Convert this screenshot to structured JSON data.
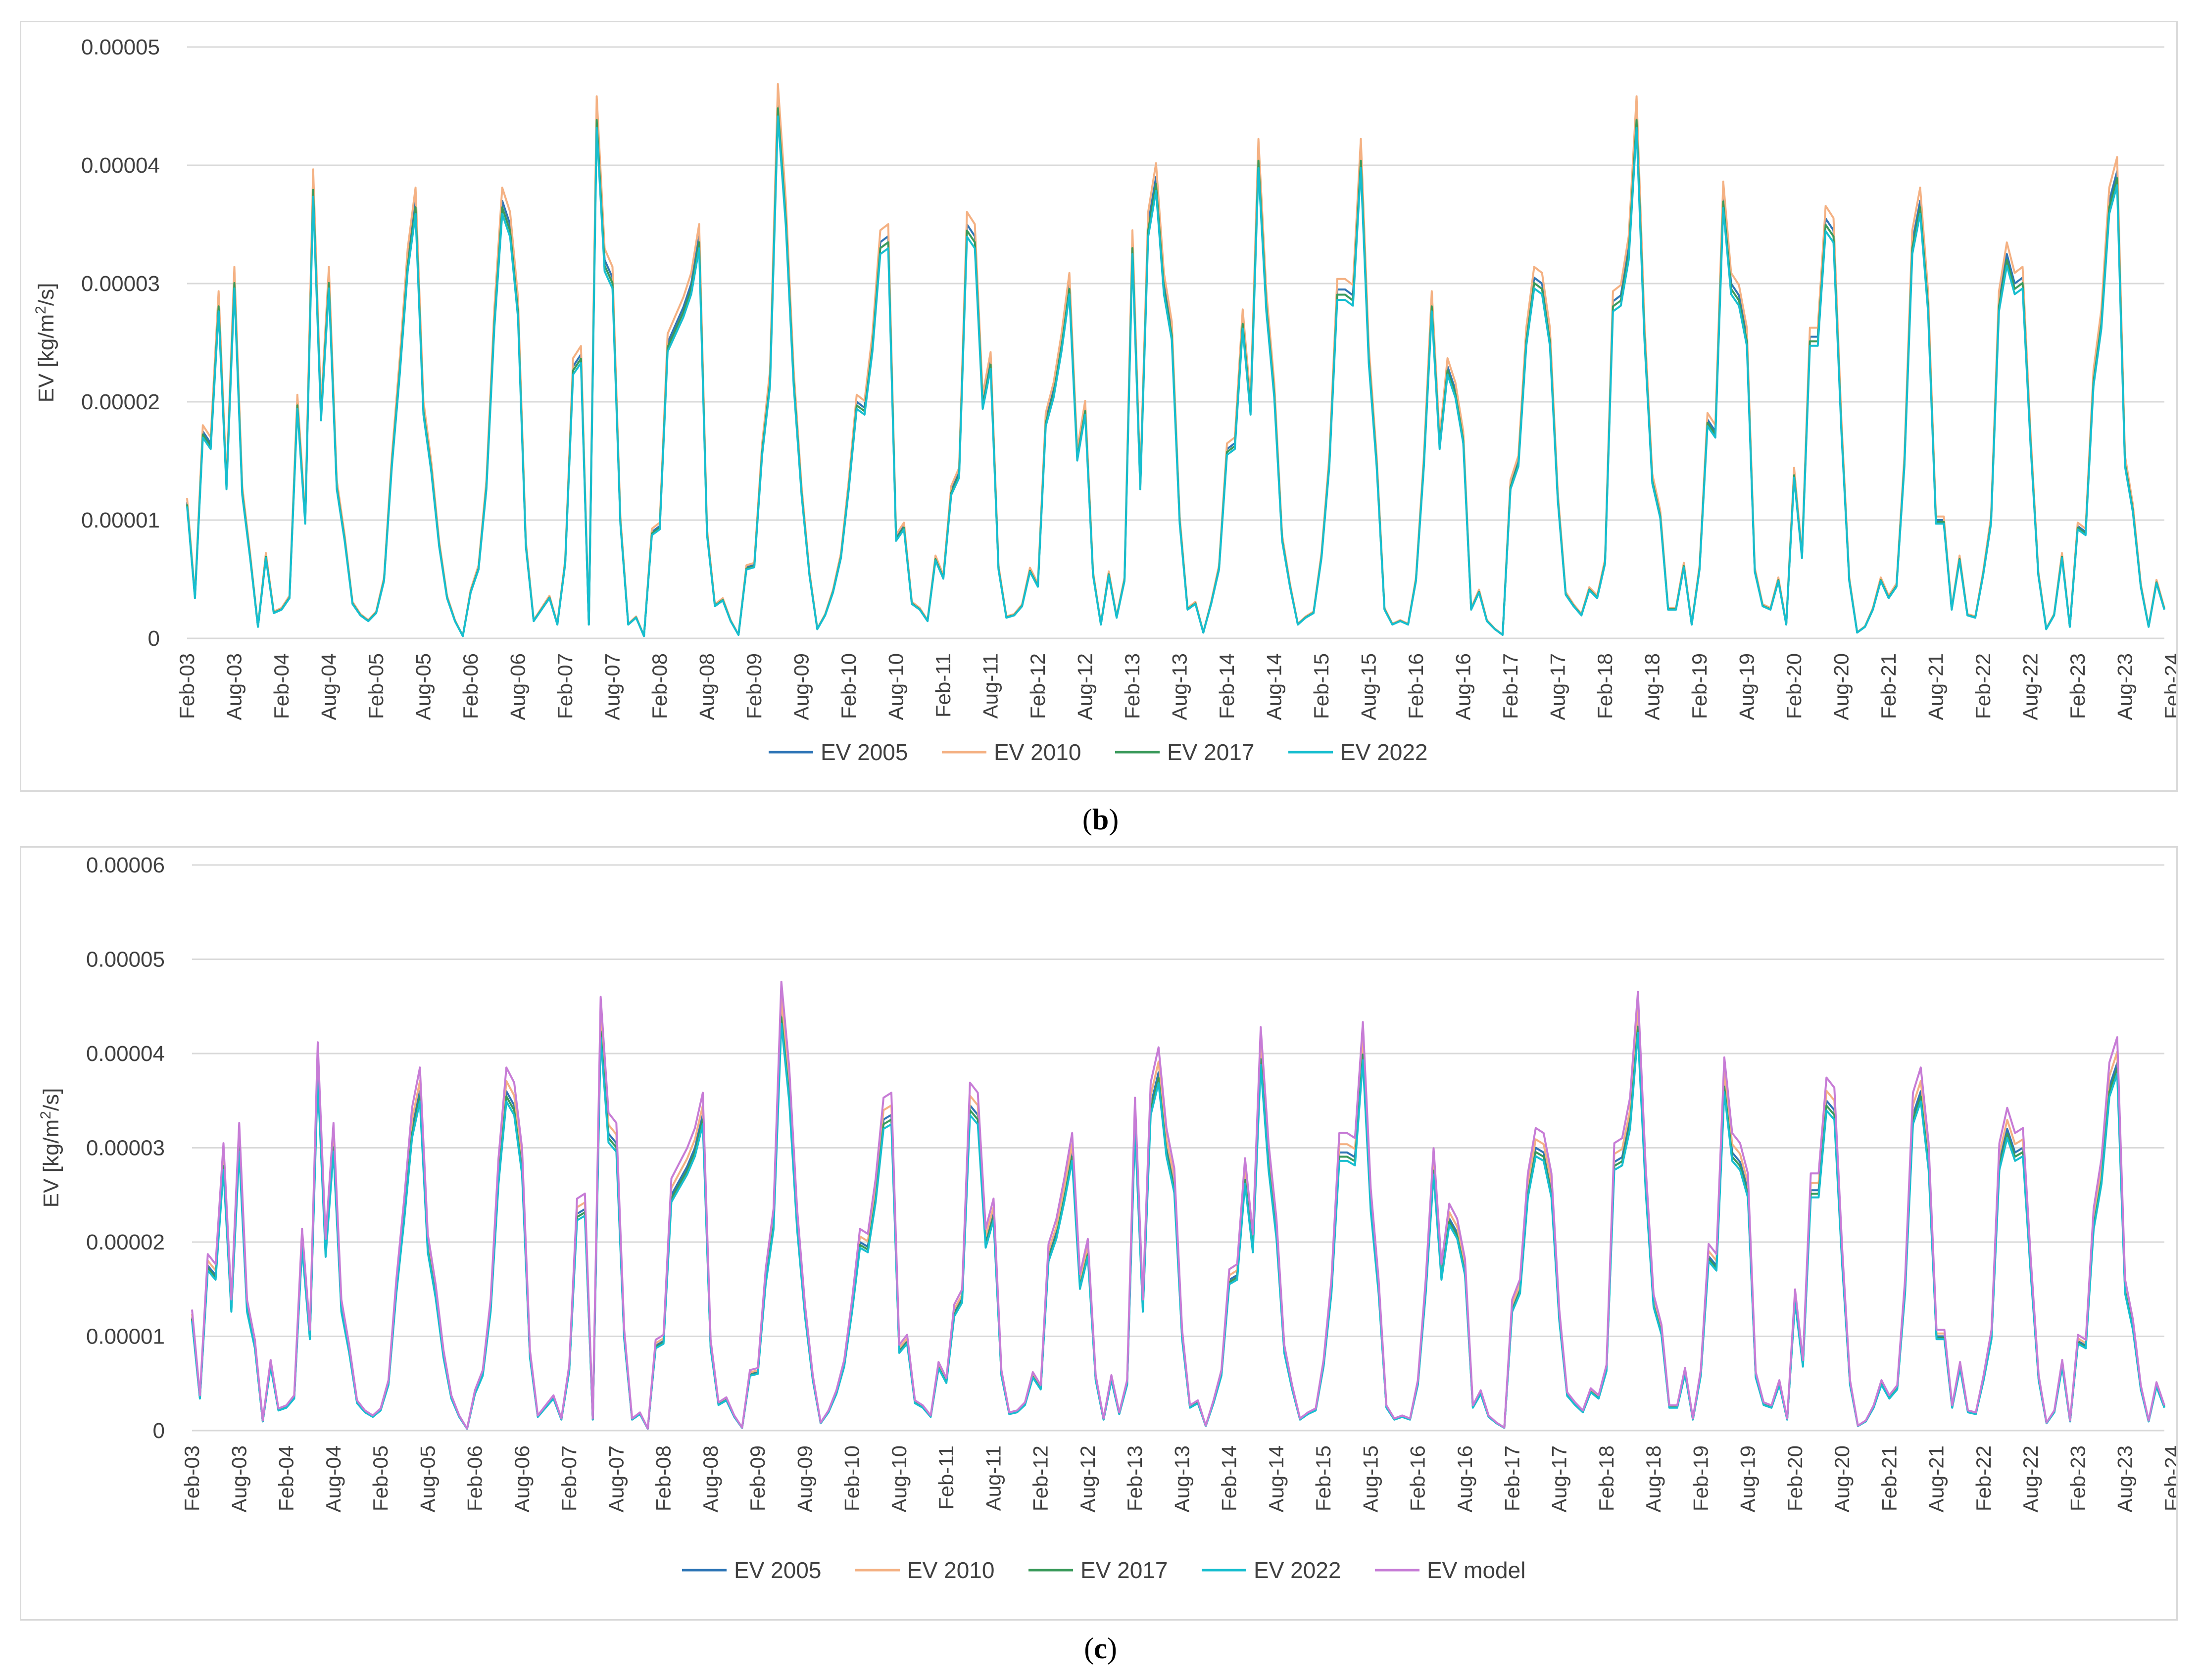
{
  "captions": {
    "b_open": "(",
    "b_letter": "b",
    "b_close": ")",
    "c_open": "(",
    "c_letter": "c",
    "c_close": ")"
  },
  "chart_data": [
    {
      "id": "b",
      "type": "line",
      "title": "",
      "ylabel": "EV [kg/m²/s]",
      "ylabel_parts": {
        "pre": "EV [kg/m",
        "sup": "2",
        "post": "/s]"
      },
      "xlabel": "",
      "ylim": [
        0,
        5e-05
      ],
      "yticks": [
        0,
        1e-05,
        2e-05,
        3e-05,
        4e-05,
        5e-05
      ],
      "ytick_labels": [
        "0",
        "0.00001",
        "0.00002",
        "0.00003",
        "0.00004",
        "0.00005"
      ],
      "x_tick_labels": [
        "Feb-03",
        "Aug-03",
        "Feb-04",
        "Aug-04",
        "Feb-05",
        "Aug-05",
        "Feb-06",
        "Aug-06",
        "Feb-07",
        "Aug-07",
        "Feb-08",
        "Aug-08",
        "Feb-09",
        "Aug-09",
        "Feb-10",
        "Aug-10",
        "Feb-11",
        "Aug-11",
        "Feb-12",
        "Aug-12",
        "Feb-13",
        "Aug-13",
        "Feb-14",
        "Aug-14",
        "Feb-15",
        "Aug-15",
        "Feb-16",
        "Aug-16",
        "Feb-17",
        "Aug-17",
        "Feb-18",
        "Aug-18",
        "Feb-19",
        "Aug-19",
        "Feb-20",
        "Aug-20",
        "Feb-21",
        "Aug-21",
        "Feb-22",
        "Aug-22",
        "Feb-23",
        "Aug-23",
        "Feb-24"
      ],
      "grid": true,
      "legend_position": "bottom",
      "base_key": "base_b",
      "series": [
        {
          "name": "EV 2005",
          "color": "#2e75b6",
          "scale": 1.0
        },
        {
          "name": "EV 2010",
          "color": "#f4b183",
          "scale": 1.03
        },
        {
          "name": "EV 2017",
          "color": "#3a9a5b",
          "scale": 0.985
        },
        {
          "name": "EV 2022",
          "color": "#17becf",
          "scale": 0.97
        }
      ]
    },
    {
      "id": "c",
      "type": "line",
      "title": "",
      "ylabel": "EV [kg/m²/s]",
      "ylabel_parts": {
        "pre": "EV [kg/m",
        "sup": "2",
        "post": "/s]"
      },
      "xlabel": "",
      "ylim": [
        0,
        6e-05
      ],
      "yticks": [
        0,
        1e-05,
        2e-05,
        3e-05,
        4e-05,
        5e-05,
        6e-05
      ],
      "ytick_labels": [
        "0",
        "0.00001",
        "0.00002",
        "0.00003",
        "0.00004",
        "0.00005",
        "0.00006"
      ],
      "x_tick_labels": [
        "Feb-03",
        "Aug-03",
        "Feb-04",
        "Aug-04",
        "Feb-05",
        "Aug-05",
        "Feb-06",
        "Aug-06",
        "Feb-07",
        "Aug-07",
        "Feb-08",
        "Aug-08",
        "Feb-09",
        "Aug-09",
        "Feb-10",
        "Aug-10",
        "Feb-11",
        "Aug-11",
        "Feb-12",
        "Aug-12",
        "Feb-13",
        "Aug-13",
        "Feb-14",
        "Aug-14",
        "Feb-15",
        "Aug-15",
        "Feb-16",
        "Aug-16",
        "Feb-17",
        "Aug-17",
        "Feb-18",
        "Aug-18",
        "Feb-19",
        "Aug-19",
        "Feb-20",
        "Aug-20",
        "Feb-21",
        "Aug-21",
        "Feb-22",
        "Aug-22",
        "Feb-23",
        "Aug-23",
        "Feb-24"
      ],
      "grid": true,
      "legend_position": "bottom",
      "base_key": "base_c",
      "series": [
        {
          "name": "EV 2005",
          "color": "#2e75b6",
          "scale": 1.0
        },
        {
          "name": "EV 2010",
          "color": "#f4b183",
          "scale": 1.03
        },
        {
          "name": "EV 2017",
          "color": "#3a9a5b",
          "scale": 0.985
        },
        {
          "name": "EV 2022",
          "color": "#17becf",
          "scale": 0.97
        },
        {
          "name": "EV model",
          "color": "#c77cd6",
          "scale": 1.07
        }
      ]
    }
  ],
  "base_b": [
    1.15e-05,
    3.5e-06,
    1.75e-05,
    1.65e-05,
    2.85e-05,
    1.3e-05,
    3.05e-05,
    1.25e-05,
    7e-06,
    1e-06,
    7e-06,
    2.2e-06,
    2.5e-06,
    3.5e-06,
    2e-05,
    1e-05,
    3.85e-05,
    1.9e-05,
    3.05e-05,
    1.3e-05,
    8.5e-06,
    3e-06,
    2e-06,
    1.5e-06,
    2.2e-06,
    5e-06,
    1.5e-05,
    2.3e-05,
    3.2e-05,
    3.7e-05,
    1.95e-05,
    1.45e-05,
    8e-06,
    3.5e-06,
    1.5e-06,
    2e-07,
    4e-06,
    6e-06,
    1.3e-05,
    2.7e-05,
    3.7e-05,
    3.5e-05,
    2.8e-05,
    8e-06,
    1.5e-06,
    2.5e-06,
    3.5e-06,
    1.2e-06,
    6.5e-06,
    2.3e-05,
    2.4e-05,
    1.2e-06,
    4.45e-05,
    3.2e-05,
    3.05e-05,
    1e-05,
    1.2e-06,
    1.8e-06,
    2e-07,
    9e-06,
    9.5e-06,
    2.5e-05,
    2.65e-05,
    2.8e-05,
    3e-05,
    3.4e-05,
    9e-06,
    2.8e-06,
    3.3e-06,
    1.5e-06,
    3e-07,
    6e-06,
    6.2e-06,
    1.6e-05,
    2.2e-05,
    4.55e-05,
    3.6e-05,
    2.2e-05,
    1.25e-05,
    5.5e-06,
    8e-07,
    2e-06,
    4e-06,
    7e-06,
    1.3e-05,
    2e-05,
    1.95e-05,
    2.5e-05,
    3.35e-05,
    3.4e-05,
    8.5e-06,
    9.5e-06,
    3e-06,
    2.5e-06,
    1.5e-06,
    6.8e-06,
    5.2e-06,
    1.25e-05,
    1.4e-05,
    3.5e-05,
    3.4e-05,
    2e-05,
    2.35e-05,
    6e-06,
    1.8e-06,
    2e-06,
    2.8e-06,
    5.8e-06,
    4.5e-06,
    1.85e-05,
    2.1e-05,
    2.5e-05,
    3e-05,
    1.55e-05,
    1.95e-05,
    5.5e-06,
    1.2e-06,
    5.5e-06,
    1.8e-06,
    5e-06,
    3.35e-05,
    1.3e-05,
    3.5e-05,
    3.9e-05,
    3e-05,
    2.6e-05,
    1e-05,
    2.5e-06,
    3e-06,
    5e-07,
    3e-06,
    6e-06,
    1.6e-05,
    1.65e-05,
    2.7e-05,
    1.95e-05,
    4.1e-05,
    2.85e-05,
    2.1e-05,
    8.5e-06,
    4.5e-06,
    1.2e-06,
    1.8e-06,
    2.2e-06,
    7e-06,
    1.5e-05,
    2.95e-05,
    2.95e-05,
    2.9e-05,
    4.1e-05,
    2.4e-05,
    1.5e-05,
    2.5e-06,
    1.2e-06,
    1.5e-06,
    1.2e-06,
    5e-06,
    1.5e-05,
    2.85e-05,
    1.65e-05,
    2.3e-05,
    2.1e-05,
    1.7e-05,
    2.5e-06,
    4e-06,
    1.5e-06,
    8e-07,
    3e-07,
    1.3e-05,
    1.5e-05,
    2.55e-05,
    3.05e-05,
    3e-05,
    2.55e-05,
    1.2e-05,
    3.8e-06,
    2.8e-06,
    2e-06,
    4.2e-06,
    3.5e-06,
    6.5e-06,
    2.85e-05,
    2.9e-05,
    3.3e-05,
    4.45e-05,
    2.6e-05,
    1.35e-05,
    1.05e-05,
    2.5e-06,
    2.5e-06,
    6.2e-06,
    1.2e-06,
    6e-06,
    1.85e-05,
    1.75e-05,
    3.75e-05,
    3e-05,
    2.9e-05,
    2.55e-05,
    5.8e-06,
    2.8e-06,
    2.5e-06,
    5e-06,
    1.2e-06,
    1.4e-05,
    7e-06,
    2.55e-05,
    2.55e-05,
    3.55e-05,
    3.45e-05,
    1.8e-05,
    5e-06,
    5e-07,
    1e-06,
    2.5e-06,
    5e-06,
    3.5e-06,
    4.5e-06,
    1.5e-05,
    3.35e-05,
    3.7e-05,
    2.85e-05,
    1e-05,
    1e-05,
    2.5e-06,
    6.8e-06,
    2e-06,
    1.8e-06,
    5.5e-06,
    1e-05,
    2.85e-05,
    3.25e-05,
    3e-05,
    3.05e-05,
    1.7e-05,
    5.5e-06,
    8e-07,
    2e-06,
    7e-06,
    1e-06,
    9.5e-06,
    9e-06,
    2.2e-05,
    2.7e-05,
    3.7e-05,
    3.95e-05,
    1.5e-05,
    1.1e-05,
    4.5e-06,
    1e-06,
    4.8e-06,
    2.5e-06
  ],
  "base_c": [
    1.2e-05,
    3.5e-06,
    1.75e-05,
    1.65e-05,
    2.85e-05,
    1.3e-05,
    3.05e-05,
    1.3e-05,
    9e-06,
    1e-06,
    7e-06,
    2.2e-06,
    2.5e-06,
    3.5e-06,
    2e-05,
    1e-05,
    3.85e-05,
    1.9e-05,
    3.05e-05,
    1.3e-05,
    8.5e-06,
    3e-06,
    2e-06,
    1.5e-06,
    2.2e-06,
    5e-06,
    1.5e-05,
    2.3e-05,
    3.2e-05,
    3.6e-05,
    1.95e-05,
    1.45e-05,
    8e-06,
    3.5e-06,
    1.5e-06,
    2e-07,
    4e-06,
    6e-06,
    1.3e-05,
    2.7e-05,
    3.6e-05,
    3.45e-05,
    2.8e-05,
    8e-06,
    1.5e-06,
    2.5e-06,
    3.5e-06,
    1.2e-06,
    6.5e-06,
    2.3e-05,
    2.35e-05,
    1.2e-06,
    4.3e-05,
    3.15e-05,
    3.05e-05,
    1e-05,
    1.2e-06,
    1.8e-06,
    2e-07,
    9e-06,
    9.5e-06,
    2.5e-05,
    2.65e-05,
    2.8e-05,
    3e-05,
    3.35e-05,
    9e-06,
    2.8e-06,
    3.3e-06,
    1.5e-06,
    3e-07,
    6e-06,
    6.2e-06,
    1.6e-05,
    2.2e-05,
    4.45e-05,
    3.6e-05,
    2.2e-05,
    1.25e-05,
    5.5e-06,
    8e-07,
    2e-06,
    4e-06,
    7e-06,
    1.3e-05,
    2e-05,
    1.95e-05,
    2.5e-05,
    3.3e-05,
    3.35e-05,
    8.5e-06,
    9.5e-06,
    3e-06,
    2.5e-06,
    1.5e-06,
    6.8e-06,
    5.2e-06,
    1.25e-05,
    1.4e-05,
    3.45e-05,
    3.35e-05,
    2e-05,
    2.3e-05,
    6e-06,
    1.8e-06,
    2e-06,
    2.8e-06,
    5.8e-06,
    4.5e-06,
    1.85e-05,
    2.1e-05,
    2.5e-05,
    2.95e-05,
    1.55e-05,
    1.9e-05,
    5.5e-06,
    1.2e-06,
    5.5e-06,
    1.8e-06,
    5e-06,
    3.3e-05,
    1.3e-05,
    3.45e-05,
    3.8e-05,
    3e-05,
    2.6e-05,
    1e-05,
    2.5e-06,
    3e-06,
    5e-07,
    3e-06,
    6e-06,
    1.6e-05,
    1.65e-05,
    2.7e-05,
    1.95e-05,
    4e-05,
    2.85e-05,
    2.1e-05,
    8.5e-06,
    4.5e-06,
    1.2e-06,
    1.8e-06,
    2.2e-06,
    7e-06,
    1.5e-05,
    2.95e-05,
    2.95e-05,
    2.9e-05,
    4.05e-05,
    2.4e-05,
    1.5e-05,
    2.5e-06,
    1.2e-06,
    1.5e-06,
    1.2e-06,
    5e-06,
    1.5e-05,
    2.8e-05,
    1.65e-05,
    2.25e-05,
    2.1e-05,
    1.7e-05,
    2.5e-06,
    4e-06,
    1.5e-06,
    8e-07,
    3e-07,
    1.3e-05,
    1.5e-05,
    2.55e-05,
    3e-05,
    2.95e-05,
    2.55e-05,
    1.2e-05,
    3.8e-06,
    2.8e-06,
    2e-06,
    4.2e-06,
    3.5e-06,
    6.5e-06,
    2.85e-05,
    2.9e-05,
    3.3e-05,
    4.35e-05,
    2.6e-05,
    1.35e-05,
    1.05e-05,
    2.5e-06,
    2.5e-06,
    6.2e-06,
    1.2e-06,
    6e-06,
    1.85e-05,
    1.75e-05,
    3.7e-05,
    2.95e-05,
    2.85e-05,
    2.55e-05,
    5.8e-06,
    2.8e-06,
    2.5e-06,
    5e-06,
    1.2e-06,
    1.4e-05,
    7e-06,
    2.55e-05,
    2.55e-05,
    3.5e-05,
    3.4e-05,
    1.8e-05,
    5e-06,
    5e-07,
    1e-06,
    2.5e-06,
    5e-06,
    3.5e-06,
    4.5e-06,
    1.5e-05,
    3.35e-05,
    3.6e-05,
    2.85e-05,
    1e-05,
    1e-05,
    2.5e-06,
    6.8e-06,
    2e-06,
    1.8e-06,
    5.5e-06,
    1e-05,
    2.85e-05,
    3.2e-05,
    2.95e-05,
    3e-05,
    1.7e-05,
    5.5e-06,
    8e-07,
    2e-06,
    7e-06,
    1e-06,
    9.5e-06,
    9e-06,
    2.2e-05,
    2.7e-05,
    3.65e-05,
    3.9e-05,
    1.5e-05,
    1.1e-05,
    4.5e-06,
    1e-06,
    4.8e-06,
    2.5e-06
  ]
}
